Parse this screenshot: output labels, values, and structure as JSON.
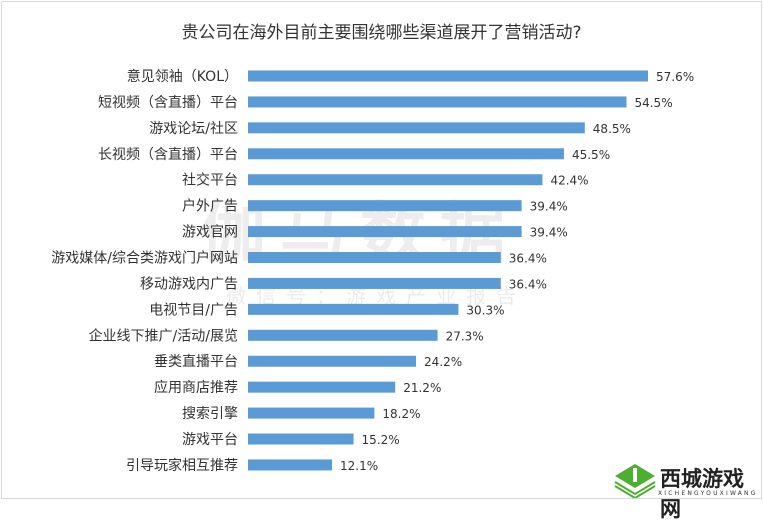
{
  "chart_data": {
    "type": "bar",
    "orientation": "horizontal",
    "title": "贵公司在海外目前主要围绕哪些渠道展开了营销活动?",
    "categories": [
      "意见领袖（KOL）",
      "短视频（含直播）平台",
      "游戏论坛/社区",
      "长视频（含直播）平台",
      "社交平台",
      "户外广告",
      "游戏官网",
      "游戏媒体/综合类游戏门户网站",
      "移动游戏内广告",
      "电视节目/广告",
      "企业线下推广/活动/展览",
      "垂类直播平台",
      "应用商店推荐",
      "搜索引擎",
      "游戏平台",
      "引导玩家相互推荐"
    ],
    "values": [
      57.6,
      54.5,
      48.5,
      45.5,
      42.4,
      39.4,
      39.4,
      36.4,
      36.4,
      30.3,
      27.3,
      24.2,
      21.2,
      18.2,
      15.2,
      12.1
    ],
    "value_suffix": "%",
    "xlabel": "",
    "ylabel": "",
    "xlim": [
      0,
      60
    ],
    "grid": false,
    "bar_color": "#5b9bd5"
  },
  "watermark": {
    "main": "伽马数据",
    "sub": "微信号：游戏产业报告"
  },
  "logo": {
    "name": "西城游戏网",
    "sub": "XICHENGYOUXIWANG"
  }
}
